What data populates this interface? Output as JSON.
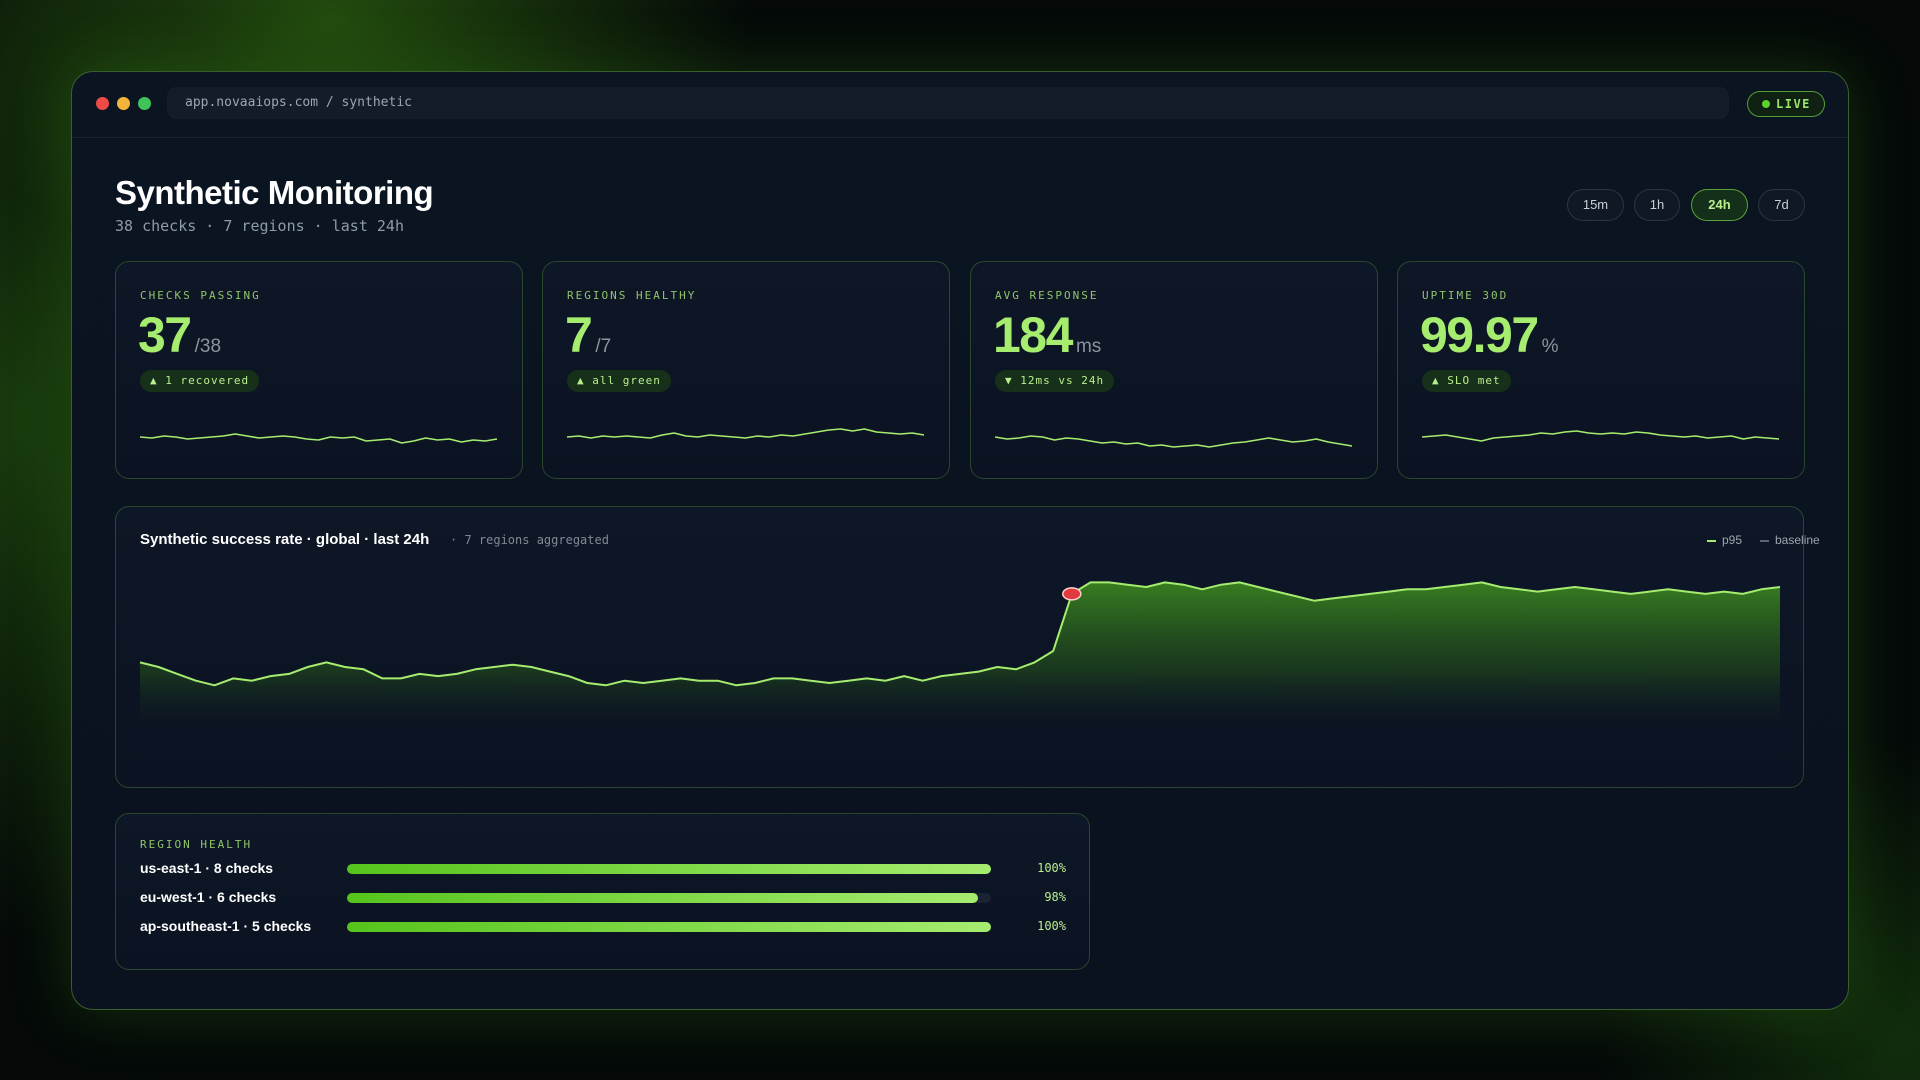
{
  "window": {
    "address": "app.novaaiops.com / synthetic",
    "live_label": "LIVE"
  },
  "header": {
    "title": "Synthetic Monitoring",
    "subtitle": "38 checks · 7 regions · last 24h",
    "ranges": [
      "15m",
      "1h",
      "24h",
      "7d"
    ],
    "active_range": "24h"
  },
  "stats": [
    {
      "label": "CHECKS PASSING",
      "value": "37",
      "unit": "/38",
      "badge": "▲ 1 recovered",
      "spark": [
        50,
        49,
        51,
        50,
        48,
        49,
        50,
        51,
        53,
        51,
        49,
        50,
        51,
        50,
        48,
        47,
        50,
        49,
        50,
        46,
        47,
        48,
        44,
        46,
        49,
        47,
        48,
        45,
        47,
        46,
        48
      ]
    },
    {
      "label": "REGIONS HEALTHY",
      "value": "7",
      "unit": "/7",
      "badge": "▲ all green",
      "spark": [
        50,
        51,
        49,
        51,
        50,
        51,
        50,
        49,
        52,
        54,
        51,
        50,
        52,
        51,
        50,
        49,
        51,
        50,
        52,
        51,
        53,
        55,
        57,
        58,
        56,
        58,
        55,
        54,
        53,
        54,
        52
      ]
    },
    {
      "label": "AVG RESPONSE",
      "value": "184",
      "unit": "ms",
      "badge": "▼ 12ms vs 24h",
      "spark": [
        50,
        48,
        49,
        51,
        50,
        47,
        49,
        48,
        46,
        44,
        45,
        43,
        44,
        41,
        42,
        40,
        41,
        42,
        40,
        42,
        44,
        45,
        47,
        49,
        47,
        45,
        46,
        48,
        45,
        43,
        41
      ]
    },
    {
      "label": "UPTIME 30D",
      "value": "99.97",
      "unit": "%",
      "badge": "▲ SLO met",
      "spark": [
        50,
        51,
        52,
        50,
        48,
        46,
        49,
        50,
        51,
        52,
        54,
        53,
        55,
        56,
        54,
        53,
        54,
        53,
        55,
        54,
        52,
        51,
        50,
        51,
        49,
        50,
        51,
        48,
        50,
        49,
        48
      ]
    }
  ],
  "main_chart": {
    "title": "Synthetic success rate · global · last 24h",
    "note": "· 7 regions aggregated",
    "legend": [
      {
        "label": "p95",
        "color": "#a6ec6f"
      },
      {
        "label": "baseline",
        "color": "#5a6674"
      }
    ]
  },
  "chart_data": {
    "type": "area",
    "title": "Synthetic success rate · global · last 24h",
    "series": [
      {
        "name": "p95",
        "values": [
          30,
          28,
          25,
          22,
          20,
          23,
          22,
          24,
          25,
          28,
          30,
          28,
          27,
          23,
          23,
          25,
          24,
          25,
          27,
          28,
          29,
          28,
          26,
          24,
          21,
          20,
          22,
          21,
          22,
          23,
          22,
          22,
          20,
          21,
          23,
          23,
          22,
          21,
          22,
          23,
          22,
          24,
          22,
          24,
          25,
          26,
          28,
          27,
          30,
          35,
          60,
          65,
          65,
          64,
          63,
          65,
          64,
          62,
          64,
          65,
          63,
          61,
          59,
          57,
          58,
          59,
          60,
          61,
          62,
          62,
          63,
          64,
          65,
          63,
          62,
          61,
          62,
          63,
          62,
          61,
          60,
          61,
          62,
          61,
          60,
          61,
          60,
          62,
          63
        ]
      },
      {
        "name": "baseline",
        "values": []
      }
    ],
    "highlight_point_index": 50,
    "ylim": [
      0,
      70
    ]
  },
  "regions": {
    "label": "REGION HEALTH",
    "items": [
      {
        "name": "us-east-1 · 8 checks",
        "pct_label": "100%",
        "pct": 1.0
      },
      {
        "name": "eu-west-1 · 6 checks",
        "pct_label": "98%",
        "pct": 0.98
      },
      {
        "name": "ap-southeast-1 · 5 checks",
        "pct_label": "100%",
        "pct": 1.0
      }
    ]
  },
  "colors": {
    "accent": "#a6ec6f",
    "accent_deep": "#56c41c",
    "alert": "#e0393e",
    "window_bg": "#0b1421"
  }
}
